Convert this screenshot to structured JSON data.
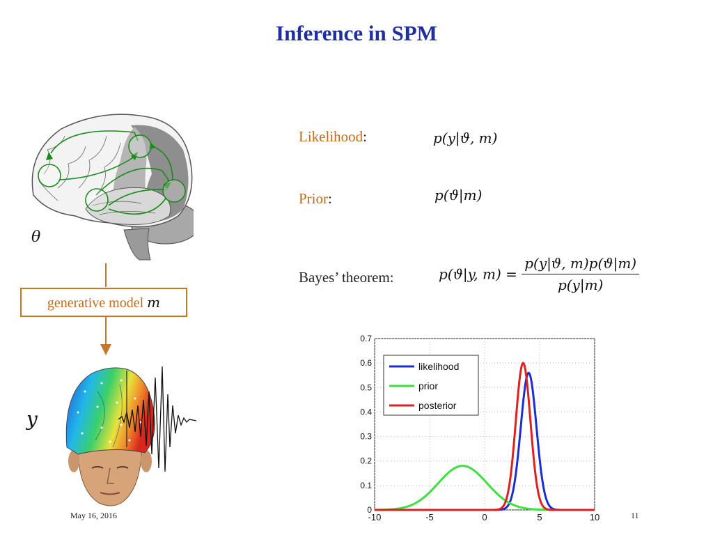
{
  "slide": {
    "title": "Inference in SPM",
    "theta_symbol": "θ",
    "y_symbol": "y",
    "generative_model": {
      "text": "generative model ",
      "symbol": "m"
    },
    "likelihood": {
      "label": "Likelihood",
      "colon": ":",
      "formula": "p(y|ϑ, m)"
    },
    "prior": {
      "label": "Prior",
      "colon": ":",
      "formula": "p(ϑ|m)"
    },
    "bayes": {
      "label": "Bayes’ theorem:",
      "lhs": "p(ϑ|y, m) =",
      "numerator": "p(y|ϑ, m)p(ϑ|m)",
      "denominator": "p(y|m)"
    },
    "footer": {
      "date": "May 16, 2016",
      "page": "11"
    }
  },
  "colors": {
    "title": "#1f2fa0",
    "accent": "#c46a1b",
    "arrow": "#c5782a",
    "network": "#1a8a1a"
  },
  "icons": [
    "brain-illustration",
    "eeg-head-illustration",
    "eeg-waveform"
  ],
  "chart_data": {
    "type": "line",
    "xlim": [
      -10,
      10
    ],
    "ylim": [
      0,
      0.7
    ],
    "xticks": [
      -10,
      -5,
      0,
      5,
      10
    ],
    "yticks": [
      0,
      0.1,
      0.2,
      0.3,
      0.4,
      0.5,
      0.6,
      0.7
    ],
    "grid": true,
    "legend_position": "top-left",
    "series": [
      {
        "name": "likelihood",
        "color": "#1a2fd0",
        "mean": 4,
        "peak": 0.56
      },
      {
        "name": "prior",
        "color": "#3ee03e",
        "mean": -2,
        "peak": 0.18
      },
      {
        "name": "posterior",
        "color": "#e02020",
        "mean": 3.5,
        "peak": 0.6
      }
    ]
  }
}
